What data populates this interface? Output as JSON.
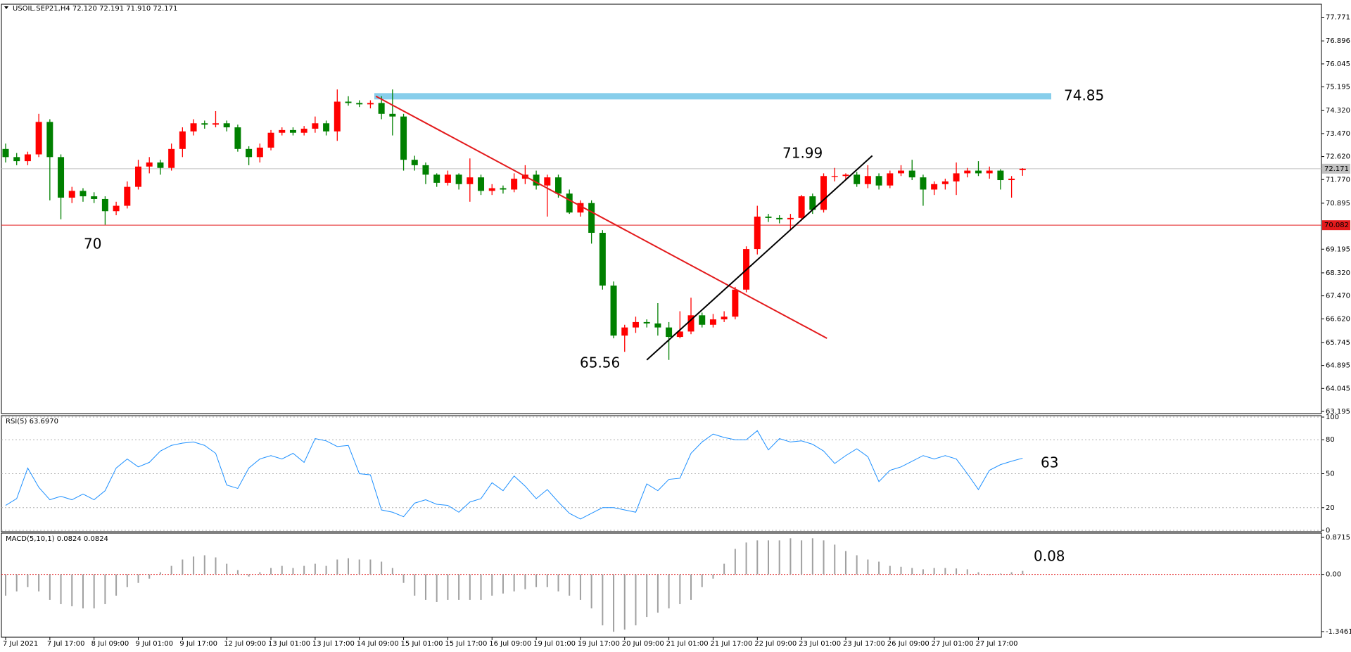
{
  "header": "USOIL.SEP21,H4  72.120 72.191 71.910 72.171",
  "chart_data": [
    {
      "type": "candlestick",
      "categories": [
        "7 Jul 2021",
        null,
        null,
        null,
        "7 Jul 17:00",
        null,
        null,
        null,
        "8 Jul 09:00",
        null,
        null,
        null,
        "9 Jul 01:00",
        null,
        null,
        null,
        "9 Jul 17:00",
        null,
        null,
        null,
        "12 Jul 09:00",
        null,
        null,
        null,
        "13 Jul 01:00",
        null,
        null,
        null,
        "13 Jul 17:00",
        null,
        null,
        null,
        "14 Jul 09:00",
        null,
        null,
        null,
        "15 Jul 01:00",
        null,
        null,
        null,
        "15 Jul 17:00",
        null,
        null,
        null,
        "16 Jul 09:00",
        null,
        null,
        null,
        "19 Jul 01:00",
        null,
        null,
        null,
        "19 Jul 17:00",
        null,
        null,
        null,
        "20 Jul 09:00",
        null,
        null,
        null,
        "21 Jul 01:00",
        null,
        null,
        null,
        "21 Jul 17:00",
        null,
        null,
        null,
        "22 Jul 09:00",
        null,
        null,
        null,
        "23 Jul 01:00",
        null,
        null,
        null,
        "23 Jul 17:00",
        null,
        null,
        null,
        "26 Jul 09:00",
        null,
        null,
        null,
        "27 Jul 01:00",
        null,
        null,
        null,
        "27 Jul 17:00",
        null,
        null,
        null,
        null
      ],
      "ohlc": [
        [
          72.9,
          73.1,
          72.4,
          72.6
        ],
        [
          72.6,
          72.75,
          72.3,
          72.45
        ],
        [
          72.45,
          72.8,
          72.3,
          72.7
        ],
        [
          72.7,
          74.2,
          72.6,
          73.9
        ],
        [
          73.9,
          74.0,
          71.0,
          72.6
        ],
        [
          72.6,
          72.7,
          70.3,
          71.1
        ],
        [
          71.1,
          71.5,
          70.9,
          71.35
        ],
        [
          71.35,
          71.45,
          70.95,
          71.15
        ],
        [
          71.15,
          71.3,
          70.9,
          71.05
        ],
        [
          71.05,
          71.15,
          70.1,
          70.6
        ],
        [
          70.6,
          70.95,
          70.45,
          70.8
        ],
        [
          70.8,
          71.7,
          70.7,
          71.5
        ],
        [
          71.5,
          72.5,
          71.4,
          72.25
        ],
        [
          72.25,
          72.6,
          72.0,
          72.4
        ],
        [
          72.4,
          72.5,
          71.95,
          72.2
        ],
        [
          72.2,
          73.1,
          72.1,
          72.9
        ],
        [
          72.9,
          73.7,
          72.6,
          73.55
        ],
        [
          73.55,
          74.0,
          73.4,
          73.85
        ],
        [
          73.85,
          73.95,
          73.65,
          73.8
        ],
        [
          73.8,
          74.3,
          73.7,
          73.85
        ],
        [
          73.85,
          73.95,
          73.55,
          73.7
        ],
        [
          73.7,
          73.8,
          72.8,
          72.9
        ],
        [
          72.9,
          73.0,
          72.3,
          72.6
        ],
        [
          72.6,
          73.1,
          72.4,
          72.95
        ],
        [
          72.95,
          73.6,
          72.85,
          73.5
        ],
        [
          73.5,
          73.7,
          73.4,
          73.6
        ],
        [
          73.6,
          73.7,
          73.4,
          73.5
        ],
        [
          73.5,
          73.75,
          73.4,
          73.65
        ],
        [
          73.65,
          74.1,
          73.5,
          73.85
        ],
        [
          73.85,
          73.95,
          73.4,
          73.55
        ],
        [
          73.55,
          75.1,
          73.2,
          74.65
        ],
        [
          74.65,
          74.85,
          74.5,
          74.6
        ],
        [
          74.6,
          74.7,
          74.45,
          74.55
        ],
        [
          74.55,
          74.7,
          74.4,
          74.6
        ],
        [
          74.6,
          74.85,
          74.0,
          74.2
        ],
        [
          74.2,
          75.1,
          73.4,
          74.1
        ],
        [
          74.1,
          74.2,
          72.1,
          72.5
        ],
        [
          72.5,
          72.65,
          72.1,
          72.3
        ],
        [
          72.3,
          72.4,
          71.6,
          71.95
        ],
        [
          71.95,
          72.0,
          71.5,
          71.65
        ],
        [
          71.65,
          72.1,
          71.55,
          71.95
        ],
        [
          71.95,
          72.0,
          71.4,
          71.6
        ],
        [
          71.6,
          72.55,
          70.95,
          71.85
        ],
        [
          71.85,
          71.95,
          71.2,
          71.35
        ],
        [
          71.35,
          71.6,
          71.2,
          71.45
        ],
        [
          71.45,
          71.55,
          71.25,
          71.4
        ],
        [
          71.4,
          72.0,
          71.3,
          71.8
        ],
        [
          71.8,
          72.3,
          71.6,
          71.95
        ],
        [
          71.95,
          72.1,
          71.4,
          71.55
        ],
        [
          71.55,
          71.95,
          70.4,
          71.85
        ],
        [
          71.85,
          71.95,
          71.1,
          71.25
        ],
        [
          71.25,
          71.4,
          70.5,
          70.55
        ],
        [
          70.55,
          71.0,
          70.4,
          70.9
        ],
        [
          70.9,
          71.0,
          69.4,
          69.8
        ],
        [
          69.8,
          69.9,
          67.7,
          67.85
        ],
        [
          67.85,
          68.0,
          65.9,
          66.0
        ],
        [
          66.0,
          66.4,
          65.4,
          66.3
        ],
        [
          66.3,
          66.7,
          66.1,
          66.5
        ],
        [
          66.5,
          66.6,
          66.3,
          66.45
        ],
        [
          66.45,
          67.2,
          66.0,
          66.3
        ],
        [
          66.3,
          66.5,
          65.1,
          65.95
        ],
        [
          65.95,
          66.9,
          65.9,
          66.15
        ],
        [
          66.15,
          67.4,
          66.05,
          66.75
        ],
        [
          66.75,
          66.85,
          66.3,
          66.4
        ],
        [
          66.4,
          66.8,
          66.3,
          66.6
        ],
        [
          66.6,
          66.9,
          66.5,
          66.7
        ],
        [
          66.7,
          67.8,
          66.6,
          67.7
        ],
        [
          67.7,
          69.3,
          67.6,
          69.2
        ],
        [
          69.2,
          70.8,
          69.0,
          70.4
        ],
        [
          70.4,
          70.5,
          70.2,
          70.35
        ],
        [
          70.35,
          70.45,
          70.15,
          70.3
        ],
        [
          70.3,
          70.5,
          69.9,
          70.35
        ],
        [
          70.35,
          71.2,
          70.25,
          71.15
        ],
        [
          71.15,
          71.25,
          70.5,
          70.65
        ],
        [
          70.65,
          72.0,
          70.55,
          71.9
        ],
        [
          71.9,
          72.2,
          71.7,
          71.9
        ],
        [
          71.9,
          72.0,
          71.75,
          71.95
        ],
        [
          71.95,
          72.05,
          71.5,
          71.6
        ],
        [
          71.6,
          72.3,
          71.45,
          71.9
        ],
        [
          71.9,
          72.0,
          71.4,
          71.55
        ],
        [
          71.55,
          72.1,
          71.45,
          72.0
        ],
        [
          72.0,
          72.3,
          71.9,
          72.1
        ],
        [
          72.1,
          72.5,
          71.75,
          71.85
        ],
        [
          71.85,
          71.95,
          70.8,
          71.4
        ],
        [
          71.4,
          71.7,
          71.2,
          71.6
        ],
        [
          71.6,
          71.8,
          71.4,
          71.7
        ],
        [
          71.7,
          72.4,
          71.2,
          72.0
        ],
        [
          72.0,
          72.2,
          71.85,
          72.1
        ],
        [
          72.1,
          72.45,
          71.9,
          72.0
        ],
        [
          72.0,
          72.25,
          71.8,
          72.1
        ],
        [
          72.1,
          72.15,
          71.4,
          71.75
        ],
        [
          71.75,
          71.9,
          71.1,
          71.8
        ],
        [
          72.12,
          72.191,
          71.91,
          72.171
        ]
      ],
      "up_color": "#ff0000",
      "down_color": "#008000",
      "ylim": [
        63.117,
        78.252
      ],
      "yticks": [
        77.771,
        76.896,
        76.045,
        75.195,
        {
          "value": 74.32,
          "label": "74.320"
        },
        {
          "value": 73.47,
          "label": "73.470"
        },
        {
          "value": 72.62,
          "label": "72.620"
        },
        {
          "value": 71.77,
          "label": "71.770"
        },
        70.895,
        69.195,
        {
          "value": 68.32,
          "label": "68.320"
        },
        {
          "value": 67.47,
          "label": "67.470"
        },
        {
          "value": 66.62,
          "label": "66.620"
        },
        65.745,
        64.895,
        64.045,
        63.195
      ],
      "levels": [
        {
          "value": 74.85,
          "label": "74.85",
          "color": "#87ceeb"
        },
        {
          "value": 72.171,
          "label": "72.171",
          "color": "#c0c0c0"
        },
        {
          "value": 70.082,
          "label": "70.082",
          "color": "#e31a1c"
        }
      ],
      "trendlines": [
        {
          "color": "#e31a1c",
          "points": [
            [
              33.5,
              74.85
            ],
            [
              74.3,
              65.9
            ]
          ]
        },
        {
          "color": "#000000",
          "points": [
            [
              58,
              65.1
            ],
            [
              78.4,
              72.65
            ]
          ]
        }
      ],
      "annotations": [
        "71.99",
        "65.56",
        "70"
      ],
      "annotation_color": "#e31a1c"
    },
    {
      "type": "line",
      "title": "RSI(5) 63.6970",
      "color": "#1e90ff",
      "values": [
        22,
        28,
        55,
        38,
        27,
        30,
        27,
        32,
        27,
        35,
        55,
        63,
        56,
        60,
        70,
        75,
        77,
        78,
        75,
        68,
        40,
        37,
        55,
        63,
        66,
        63,
        68,
        60,
        81,
        79,
        74,
        75,
        50,
        49,
        18,
        16,
        12,
        24,
        27,
        23,
        22,
        16,
        25,
        28,
        42,
        35,
        48,
        39,
        28,
        36,
        25,
        15,
        10,
        15,
        20,
        20,
        18,
        16,
        41,
        35,
        45,
        46,
        68,
        78,
        85,
        82,
        80,
        80,
        88,
        71,
        81,
        78,
        79,
        76,
        70,
        59,
        66,
        72,
        65,
        43,
        53,
        56,
        61,
        66,
        63,
        66,
        63,
        50,
        36,
        53,
        58,
        61,
        63.697
      ],
      "ylim": [
        0,
        100
      ],
      "yticks": [
        0,
        20,
        50,
        80,
        100
      ],
      "grid": true,
      "annotations": [
        "63"
      ],
      "annotation_color": "#e31a1c"
    },
    {
      "type": "bar",
      "title": "MACD(5,10,1) 0.0824 0.0824",
      "color": "#a0a0a0",
      "values": [
        -0.5,
        -0.4,
        -0.3,
        -0.4,
        -0.6,
        -0.7,
        -0.75,
        -0.8,
        -0.8,
        -0.7,
        -0.5,
        -0.3,
        -0.2,
        -0.1,
        0.05,
        0.2,
        0.35,
        0.42,
        0.45,
        0.4,
        0.25,
        0.1,
        -0.05,
        0.05,
        0.15,
        0.2,
        0.15,
        0.2,
        0.25,
        0.2,
        0.35,
        0.38,
        0.35,
        0.35,
        0.3,
        0.15,
        -0.2,
        -0.5,
        -0.6,
        -0.65,
        -0.6,
        -0.6,
        -0.6,
        -0.6,
        -0.5,
        -0.45,
        -0.4,
        -0.35,
        -0.3,
        -0.3,
        -0.4,
        -0.5,
        -0.6,
        -0.8,
        -1.2,
        -1.35,
        -1.3,
        -1.2,
        -1.0,
        -0.9,
        -0.8,
        -0.7,
        -0.6,
        -0.3,
        -0.1,
        0.25,
        0.6,
        0.75,
        0.8,
        0.8,
        0.8,
        0.85,
        0.8,
        0.85,
        0.8,
        0.7,
        0.55,
        0.45,
        0.35,
        0.3,
        0.2,
        0.18,
        0.15,
        0.12,
        0.15,
        0.15,
        0.14,
        0.12,
        0.05,
        -0.02,
        0.02,
        0.05,
        0.0824
      ],
      "ylim": [
        -1.3461,
        0.8715
      ],
      "yticks": [
        -1.3461,
        {
          "value": 0,
          "label": "0.00"
        },
        0.8715
      ],
      "zero_color": "#e31a1c",
      "annotations": [
        "0.08"
      ],
      "annotation_color": "#e31a1c"
    }
  ]
}
